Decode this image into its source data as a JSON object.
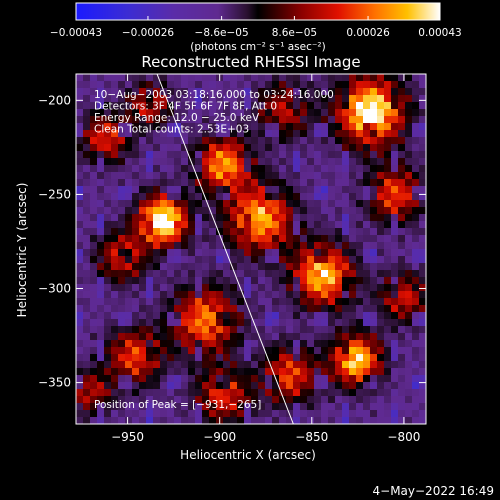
{
  "chart_data": {
    "type": "heatmap",
    "title": "Reconstructed RHESSI Image",
    "xlabel": "Heliocentric X (arcsec)",
    "ylabel": "Heliocentric Y (arcsec)",
    "xlim": [
      -978,
      -788
    ],
    "ylim": [
      -372,
      -186
    ],
    "x_ticks": [
      {
        "value": -950,
        "label": "−950"
      },
      {
        "value": -900,
        "label": "−900"
      },
      {
        "value": -850,
        "label": "−850"
      },
      {
        "value": -800,
        "label": "−800"
      }
    ],
    "y_ticks": [
      {
        "value": -200,
        "label": "−200"
      },
      {
        "value": -250,
        "label": "−250"
      },
      {
        "value": -300,
        "label": "−300"
      },
      {
        "value": -350,
        "label": "−350"
      }
    ],
    "colorbar": {
      "range": [
        -0.00043,
        0.00043
      ],
      "ticks": [
        {
          "value": -0.00043,
          "label": "−0.00043"
        },
        {
          "value": -0.00026,
          "label": "−0.00026"
        },
        {
          "value": -8.6e-05,
          "label": "−8.6e−05"
        },
        {
          "value": 8.6e-05,
          "label": "8.6e−05"
        },
        {
          "value": 0.00026,
          "label": "0.00026"
        },
        {
          "value": 0.00043,
          "label": "0.00043"
        }
      ],
      "unit_label": "(photons cm⁻² s⁻¹ asec⁻²)"
    },
    "annotations": [
      "10−Aug−2003 03:18:16.000 to 03:24:16.000",
      "Detectors: 3F 4F 5F 6F 7F 8F, Att 0",
      "Energy Range: 12.0 − 25.0 keV",
      "Clean     Total counts: 2.53E+03"
    ],
    "peak_label": "Position of Peak = [−931,−265]",
    "peak": [
      -931,
      -265
    ],
    "limb": [
      [
        -934,
        -186
      ],
      [
        -860,
        -372
      ]
    ],
    "sources": [
      {
        "x": -931,
        "y": -264,
        "intensity": 1.0,
        "size": 9
      },
      {
        "x": -818,
        "y": -206,
        "intensity": 0.95,
        "size": 12
      },
      {
        "x": -844,
        "y": -293,
        "intensity": 0.8,
        "size": 11
      },
      {
        "x": -878,
        "y": -263,
        "intensity": 0.75,
        "size": 12
      },
      {
        "x": -898,
        "y": -234,
        "intensity": 0.7,
        "size": 10
      },
      {
        "x": -826,
        "y": -338,
        "intensity": 0.85,
        "size": 9
      },
      {
        "x": -908,
        "y": -317,
        "intensity": 0.65,
        "size": 12
      },
      {
        "x": -946,
        "y": -336,
        "intensity": 0.55,
        "size": 10
      },
      {
        "x": -962,
        "y": -220,
        "intensity": 0.5,
        "size": 9
      },
      {
        "x": -953,
        "y": -283,
        "intensity": 0.48,
        "size": 9
      },
      {
        "x": -898,
        "y": -357,
        "intensity": 0.5,
        "size": 10
      },
      {
        "x": -862,
        "y": -346,
        "intensity": 0.55,
        "size": 10
      },
      {
        "x": -805,
        "y": -250,
        "intensity": 0.55,
        "size": 10
      },
      {
        "x": -938,
        "y": -202,
        "intensity": 0.45,
        "size": 8
      },
      {
        "x": -865,
        "y": -205,
        "intensity": 0.4,
        "size": 10
      },
      {
        "x": -800,
        "y": -305,
        "intensity": 0.45,
        "size": 9
      },
      {
        "x": -970,
        "y": -355,
        "intensity": 0.4,
        "size": 8
      }
    ],
    "colors": {
      "background": "#000000",
      "text": "#ffffff"
    },
    "footer_date": "4−May−2022 16:49"
  }
}
